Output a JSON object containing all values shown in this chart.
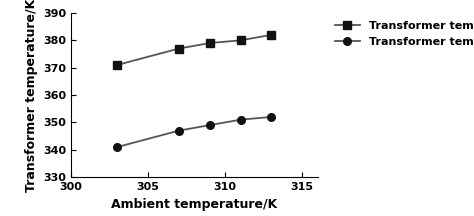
{
  "x": [
    303,
    307,
    309,
    311,
    313
  ],
  "y_max": [
    371,
    377,
    379,
    380,
    382
  ],
  "y_min": [
    341,
    347,
    349,
    351,
    352
  ],
  "xlabel": "Ambient temperature/K",
  "ylabel": "Transformer temperature/K",
  "xlim": [
    300,
    316
  ],
  "ylim": [
    330,
    390
  ],
  "xticks": [
    300,
    305,
    310,
    315
  ],
  "yticks": [
    330,
    340,
    350,
    360,
    370,
    380,
    390
  ],
  "legend_max": "Transformer temperature maximum",
  "legend_min": "Transformer temperature minimum",
  "line_color": "#555555",
  "marker_square": "s",
  "marker_circle": "o",
  "marker_color": "#111111",
  "line_width": 1.3,
  "marker_size": 5.5,
  "font_size_label": 9,
  "font_size_tick": 8,
  "font_size_legend": 8
}
